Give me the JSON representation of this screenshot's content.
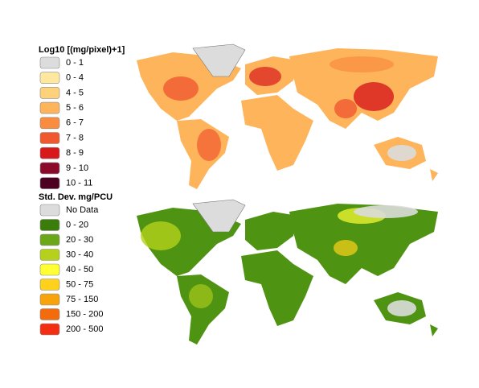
{
  "legends": [
    {
      "title": "Log10 [(mg/pixel)+1]",
      "items": [
        {
          "label": "0 - 1",
          "color": "#dcdcdc"
        },
        {
          "label": "0 - 4",
          "color": "#fee8a0"
        },
        {
          "label": "4 - 5",
          "color": "#fed27a"
        },
        {
          "label": "5 - 6",
          "color": "#fdb45a"
        },
        {
          "label": "6 - 7",
          "color": "#f98c3f"
        },
        {
          "label": "7 - 8",
          "color": "#f0592f"
        },
        {
          "label": "8 - 9",
          "color": "#d7191c"
        },
        {
          "label": "9 - 10",
          "color": "#8b0a2a"
        },
        {
          "label": "10 - 11",
          "color": "#4d0020"
        }
      ]
    },
    {
      "title": "Std. Dev. mg/PCU",
      "items": [
        {
          "label": "No Data",
          "color": "#dcdcdc"
        },
        {
          "label": "0 - 20",
          "color": "#3a7d0a"
        },
        {
          "label": "20 - 30",
          "color": "#6aa81a"
        },
        {
          "label": "30 - 40",
          "color": "#b5d11c"
        },
        {
          "label": "40 - 50",
          "color": "#ffff33"
        },
        {
          "label": "50 - 75",
          "color": "#ffd11a"
        },
        {
          "label": "75 - 150",
          "color": "#f7a30c"
        },
        {
          "label": "150 - 200",
          "color": "#f26b0c"
        },
        {
          "label": "200 - 500",
          "color": "#f22f12"
        }
      ]
    }
  ]
}
